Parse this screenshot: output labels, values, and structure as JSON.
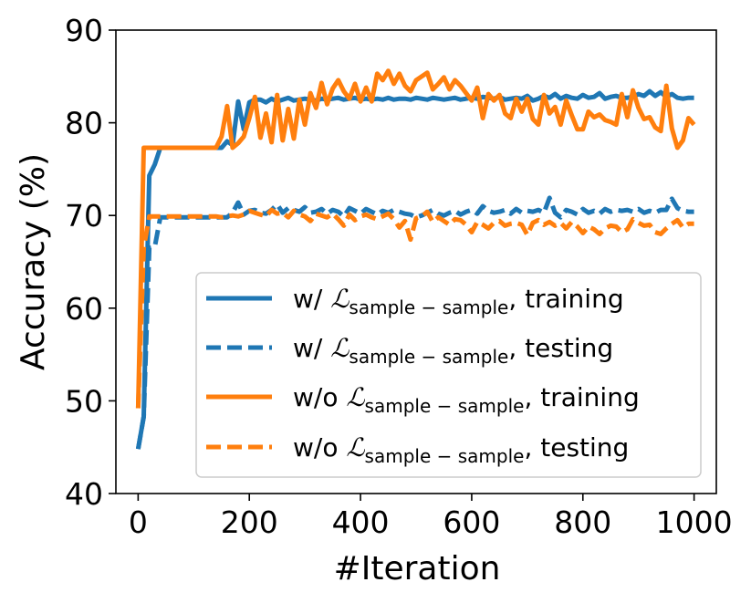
{
  "chart_data": {
    "type": "line",
    "xlabel": "#Iteration",
    "ylabel": "Accuracy (%)",
    "xlim": [
      -40,
      1040
    ],
    "ylim": [
      40,
      90
    ],
    "xticks": [
      0,
      200,
      400,
      600,
      800,
      1000
    ],
    "yticks": [
      40,
      50,
      60,
      70,
      80,
      90
    ],
    "legend_position": "lower-right",
    "colors": {
      "blue": "#1f77b4",
      "orange": "#ff7f0e"
    },
    "legend": [
      {
        "prefix": "w/ ",
        "symbol": "ℒ",
        "sub": "sample − sample",
        "suffix": ", training",
        "color": "#1f77b4",
        "style": "solid"
      },
      {
        "prefix": "w/ ",
        "symbol": "ℒ",
        "sub": "sample − sample",
        "suffix": ", testing",
        "color": "#1f77b4",
        "style": "dashed"
      },
      {
        "prefix": "w/o ",
        "symbol": "ℒ",
        "sub": "sample − sample",
        "suffix": ", training",
        "color": "#ff7f0e",
        "style": "solid"
      },
      {
        "prefix": "w/o ",
        "symbol": "ℒ",
        "sub": "sample − sample",
        "suffix": ", testing",
        "color": "#ff7f0e",
        "style": "dashed"
      }
    ],
    "x": [
      0,
      10,
      20,
      30,
      40,
      50,
      60,
      70,
      80,
      90,
      100,
      110,
      120,
      130,
      140,
      150,
      160,
      170,
      180,
      190,
      200,
      210,
      220,
      230,
      240,
      250,
      260,
      270,
      280,
      290,
      300,
      310,
      320,
      330,
      340,
      350,
      360,
      370,
      380,
      390,
      400,
      410,
      420,
      430,
      440,
      450,
      460,
      470,
      480,
      490,
      500,
      510,
      520,
      530,
      540,
      550,
      560,
      570,
      580,
      590,
      600,
      610,
      620,
      630,
      640,
      650,
      660,
      670,
      680,
      690,
      700,
      710,
      720,
      730,
      740,
      750,
      760,
      770,
      780,
      790,
      800,
      810,
      820,
      830,
      840,
      850,
      860,
      870,
      880,
      890,
      900,
      910,
      920,
      930,
      940,
      950,
      960,
      970,
      980,
      990,
      1000
    ],
    "series": [
      {
        "values": [
          44.8,
          48.3,
          74.3,
          75.5,
          77.3,
          77.3,
          77.3,
          77.3,
          77.3,
          77.3,
          77.3,
          77.3,
          77.3,
          77.3,
          77.3,
          77.3,
          78.0,
          77.6,
          82.3,
          79.3,
          82.2,
          82.5,
          82.5,
          82.2,
          82.6,
          82.3,
          82.5,
          82.7,
          82.4,
          82.5,
          82.6,
          82.5,
          82.4,
          82.6,
          82.5,
          82.6,
          82.7,
          82.5,
          82.6,
          82.7,
          82.5,
          82.6,
          82.5,
          82.6,
          82.5,
          82.7,
          82.5,
          82.6,
          82.6,
          82.5,
          82.7,
          82.6,
          82.5,
          82.7,
          82.6,
          82.5,
          82.6,
          82.7,
          82.5,
          82.6,
          82.7,
          82.6,
          82.8,
          82.7,
          82.6,
          82.8,
          82.5,
          82.6,
          82.7,
          82.6,
          82.9,
          82.4,
          82.6,
          82.9,
          82.7,
          83.1,
          82.6,
          82.9,
          82.7,
          82.6,
          83.0,
          82.7,
          82.8,
          83.2,
          82.6,
          82.8,
          82.9,
          82.7,
          82.7,
          82.8,
          83.1,
          82.9,
          83.4,
          82.9,
          83.3,
          82.8,
          83.1,
          82.7,
          82.6,
          82.7,
          82.7
        ]
      },
      {
        "values": [
          44.8,
          48.3,
          66.5,
          66.6,
          69.8,
          69.8,
          69.8,
          69.8,
          69.8,
          69.8,
          69.8,
          69.8,
          69.8,
          69.8,
          69.8,
          69.8,
          69.8,
          70.3,
          71.4,
          70.1,
          70.5,
          70.6,
          70.3,
          70.2,
          70.6,
          71.2,
          70.3,
          70.8,
          70.6,
          70.4,
          70.9,
          70.3,
          70.4,
          70.7,
          70.2,
          70.6,
          70.4,
          69.9,
          70.8,
          70.5,
          70.2,
          70.7,
          70.4,
          70.1,
          70.5,
          70.3,
          70.6,
          70.4,
          70.2,
          70.1,
          69.8,
          70.0,
          70.3,
          70.6,
          70.2,
          70.0,
          70.3,
          70.5,
          70.1,
          70.4,
          70.6,
          70.2,
          71.0,
          70.5,
          70.3,
          70.4,
          70.6,
          70.2,
          70.7,
          70.3,
          70.5,
          70.4,
          70.6,
          70.3,
          71.9,
          70.3,
          69.8,
          70.6,
          70.4,
          70.1,
          70.7,
          70.3,
          70.5,
          70.2,
          70.7,
          70.4,
          70.6,
          70.5,
          70.6,
          70.4,
          70.7,
          70.3,
          70.5,
          70.3,
          70.6,
          70.6,
          71.8,
          70.8,
          70.5,
          70.4,
          70.4
        ]
      },
      {
        "values": [
          49.2,
          77.3,
          77.3,
          77.3,
          77.3,
          77.3,
          77.3,
          77.3,
          77.3,
          77.3,
          77.3,
          77.3,
          77.3,
          77.3,
          77.3,
          78.5,
          81.8,
          77.3,
          77.8,
          78.5,
          80.5,
          82.8,
          78.4,
          81.0,
          77.9,
          83.0,
          78.1,
          81.5,
          78.3,
          82.5,
          79.8,
          83.2,
          81.6,
          84.3,
          82.0,
          83.7,
          84.6,
          83.4,
          82.6,
          84.2,
          82.3,
          83.8,
          82.3,
          85.3,
          84.6,
          85.6,
          84.2,
          85.3,
          84.0,
          83.4,
          84.6,
          85.0,
          85.4,
          83.6,
          84.2,
          84.9,
          83.6,
          84.6,
          84.0,
          83.2,
          82.4,
          83.8,
          80.5,
          83.1,
          82.4,
          83.0,
          81.0,
          80.5,
          82.6,
          81.2,
          82.6,
          80.4,
          79.8,
          83.0,
          81.0,
          81.7,
          79.8,
          82.4,
          80.8,
          79.3,
          79.3,
          81.2,
          80.6,
          80.9,
          80.3,
          80.1,
          79.8,
          83.1,
          80.6,
          83.5,
          81.6,
          80.4,
          80.6,
          79.5,
          79.1,
          84.0,
          79.4,
          77.3,
          78.1,
          80.5,
          79.8
        ]
      },
      {
        "values": [
          49.2,
          66.5,
          69.9,
          69.9,
          69.9,
          69.9,
          69.9,
          69.9,
          69.9,
          69.9,
          69.9,
          69.9,
          69.9,
          69.9,
          69.9,
          69.8,
          69.9,
          70.0,
          69.9,
          70.1,
          70.5,
          70.3,
          70.1,
          69.9,
          70.6,
          70.2,
          70.3,
          69.8,
          70.5,
          70.1,
          69.9,
          69.4,
          70.2,
          70.0,
          69.8,
          70.2,
          69.6,
          68.9,
          70.1,
          69.5,
          69.9,
          70.1,
          69.8,
          69.6,
          69.9,
          70.2,
          69.6,
          68.7,
          69.4,
          67.4,
          69.7,
          69.9,
          70.4,
          69.3,
          69.8,
          69.4,
          69.0,
          69.6,
          69.5,
          69.0,
          68.2,
          69.3,
          69.0,
          68.6,
          69.2,
          69.4,
          68.9,
          69.1,
          69.2,
          69.0,
          67.9,
          69.2,
          69.5,
          69.0,
          69.3,
          68.9,
          69.2,
          68.6,
          69.3,
          68.8,
          68.1,
          68.8,
          68.5,
          68.0,
          68.6,
          68.9,
          68.8,
          68.2,
          68.5,
          69.6,
          69.2,
          68.9,
          69.0,
          68.2,
          68.0,
          68.6,
          69.1,
          69.5,
          68.7,
          69.1,
          69.1
        ]
      }
    ]
  }
}
